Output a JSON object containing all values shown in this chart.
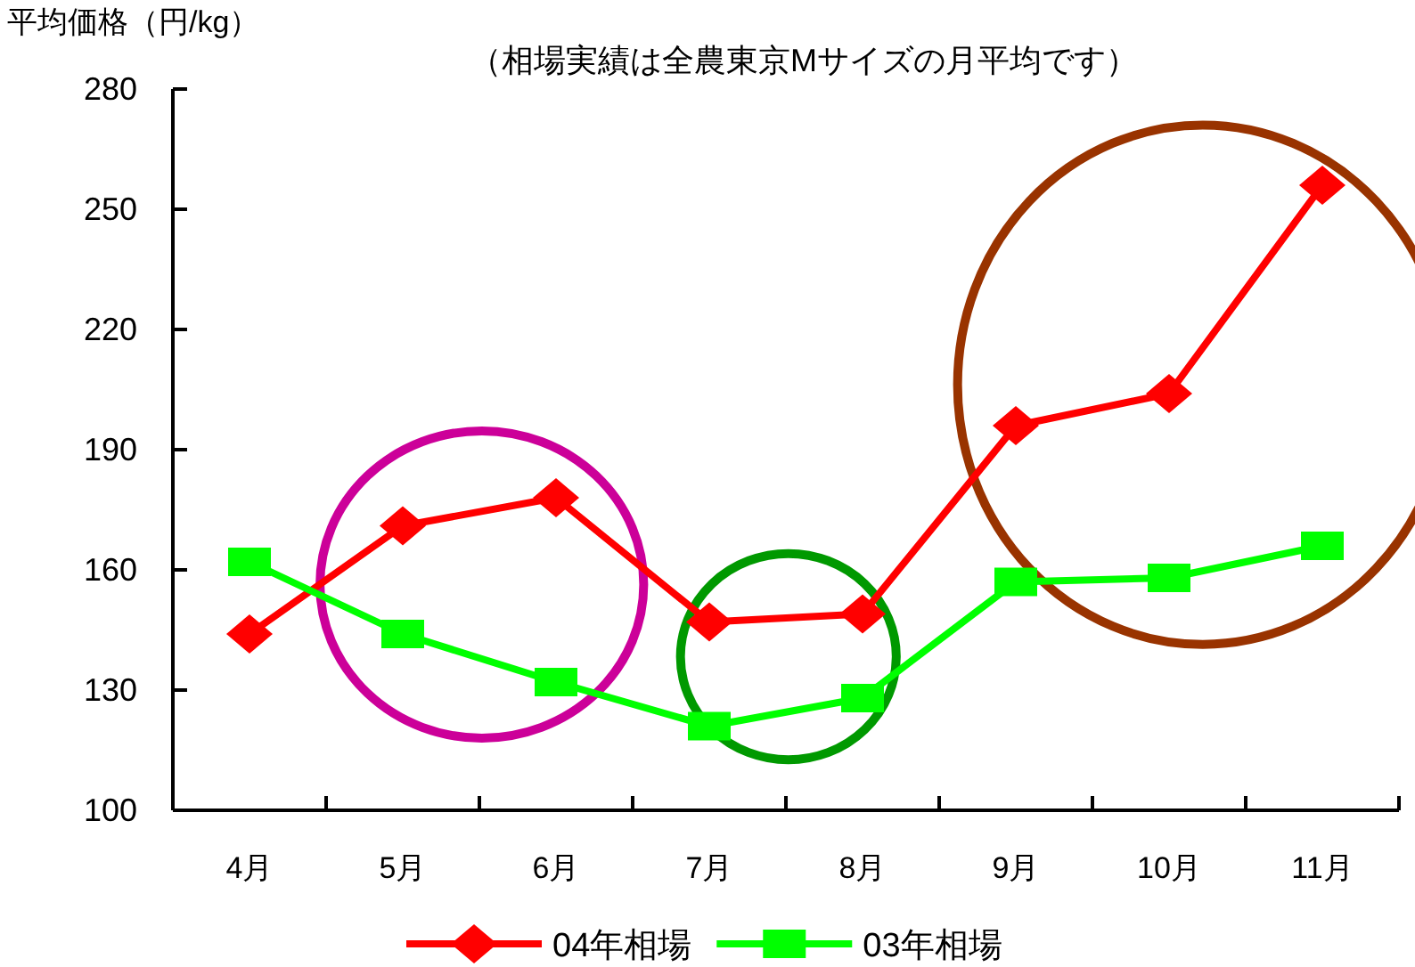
{
  "chart_data": {
    "type": "line",
    "ylabel": "平均価格（円/kg）",
    "subtitle": "（相場実績は全農東京Mサイズの月平均です）",
    "categories": [
      "4月",
      "5月",
      "6月",
      "7月",
      "8月",
      "9月",
      "10月",
      "11月"
    ],
    "series": [
      {
        "name": "04年相場",
        "color": "#ff0000",
        "marker": "diamond",
        "values": [
          144,
          171,
          178,
          147,
          149,
          196,
          204,
          256
        ]
      },
      {
        "name": "03年相場",
        "color": "#00ff00",
        "marker": "square",
        "values": [
          162,
          144,
          132,
          121,
          128,
          157,
          158,
          166
        ]
      }
    ],
    "ylim": [
      100,
      280
    ],
    "yticks": [
      100,
      130,
      160,
      190,
      220,
      250,
      280
    ],
    "grid": false,
    "legend": "bottom",
    "line_style": "solid"
  }
}
